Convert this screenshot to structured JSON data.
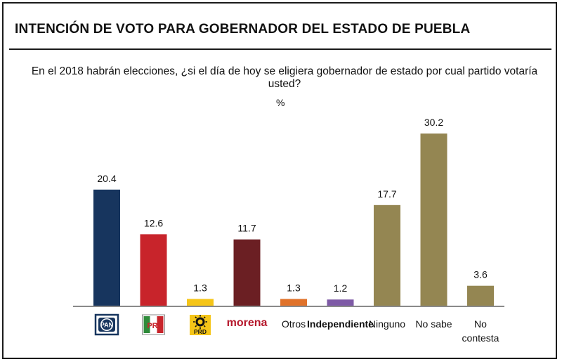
{
  "chart_data": {
    "type": "bar",
    "title": "INTENCIÓN DE VOTO PARA GOBERNADOR DEL ESTADO DE PUEBLA",
    "subtitle": "En el 2018 habrán elecciones, ¿si el día de hoy se eligiera gobernador de estado por cual partido votaría usted?",
    "unit": "%",
    "ylim": [
      0,
      30.2
    ],
    "grid": false,
    "categories": [
      {
        "label": "PAN",
        "kind": "logo-pan",
        "value": 20.4,
        "value_label": "20.4",
        "color": "#17355e"
      },
      {
        "label": "PRI",
        "kind": "logo-pri",
        "value": 12.6,
        "value_label": "12.6",
        "color": "#c8242b"
      },
      {
        "label": "PRD",
        "kind": "logo-prd",
        "value": 1.3,
        "value_label": "1.3",
        "color": "#f5c518"
      },
      {
        "label": "morena",
        "kind": "logo-morena",
        "value": 11.7,
        "value_label": "11.7",
        "color": "#6b1f23"
      },
      {
        "label": "Otros",
        "kind": "text",
        "value": 1.3,
        "value_label": "1.3",
        "color": "#e0722a"
      },
      {
        "label": "Independiente",
        "kind": "text-purple",
        "value": 1.2,
        "value_label": "1.2",
        "color": "#7e5aa6"
      },
      {
        "label": "Ninguno",
        "kind": "text",
        "value": 17.7,
        "value_label": "17.7",
        "color": "#948652"
      },
      {
        "label": "No sabe",
        "kind": "text",
        "value": 30.2,
        "value_label": "30.2",
        "color": "#948652"
      },
      {
        "label": "No contesta",
        "kind": "text",
        "lines": [
          "No",
          "contesta"
        ],
        "value": 3.6,
        "value_label": "3.6",
        "color": "#948652"
      }
    ],
    "colors": {
      "pan": "#17355e",
      "pri_green": "#2e8b3a",
      "pri_red": "#c8242b",
      "prd_yellow": "#f5c518",
      "morena": "#b5172b",
      "independiente": "#7e5aa6",
      "axis": "#8a8a8a"
    }
  }
}
